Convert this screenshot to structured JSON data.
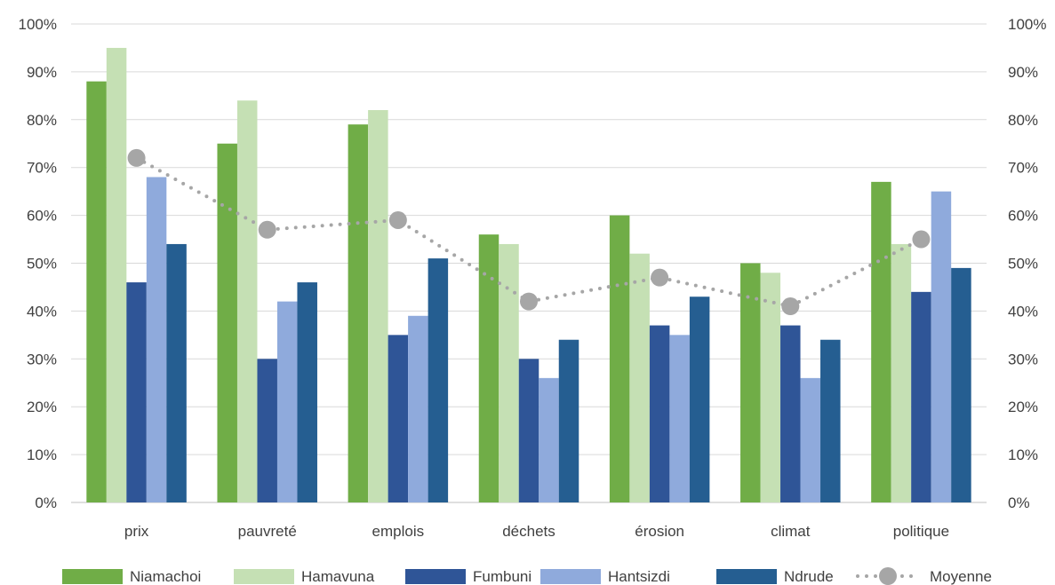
{
  "chart_data": {
    "type": "bar",
    "categories": [
      "prix",
      "pauvreté",
      "emplois",
      "déchets",
      "érosion",
      "climat",
      "politique"
    ],
    "series": [
      {
        "name": "Niamachoi",
        "color": "#70AD47",
        "values": [
          88,
          75,
          79,
          56,
          60,
          50,
          67
        ]
      },
      {
        "name": "Hamavuna",
        "color": "#C5E0B4",
        "values": [
          95,
          84,
          82,
          54,
          52,
          48,
          54
        ]
      },
      {
        "name": "Fumbuni",
        "color": "#2F5597",
        "values": [
          46,
          30,
          35,
          30,
          37,
          37,
          44
        ]
      },
      {
        "name": "Hantsizdi",
        "color": "#8FAADC",
        "values": [
          68,
          42,
          39,
          26,
          35,
          26,
          65
        ]
      },
      {
        "name": "Ndrude",
        "color": "#255E91",
        "values": [
          54,
          46,
          51,
          34,
          43,
          34,
          49
        ]
      }
    ],
    "line_series": {
      "name": "Moyenne",
      "color": "#A6A6A6",
      "style": "dotted",
      "values": [
        72,
        57,
        59,
        42,
        47,
        41,
        55
      ]
    },
    "y_ticks": [
      "0%",
      "10%",
      "20%",
      "30%",
      "40%",
      "50%",
      "60%",
      "70%",
      "80%",
      "90%",
      "100%"
    ],
    "y_right_ticks": [
      "0%",
      "10%",
      "20%",
      "30%",
      "40%",
      "50%",
      "60%",
      "70%",
      "80%",
      "90%",
      "100%"
    ],
    "ylim": [
      0,
      100
    ],
    "grid": true,
    "legend_position": "bottom"
  }
}
